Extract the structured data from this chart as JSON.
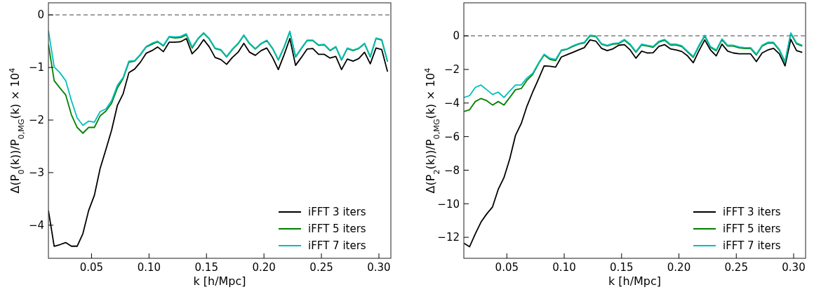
{
  "chart_data": [
    {
      "type": "line",
      "xlabel": "k [h/Mpc]",
      "ylabel": "Δ(P$_{0}$(k))/P$_{0,MG}$(k) × 10$^{4}$",
      "x": [
        0.0125,
        0.0175,
        0.0225,
        0.0275,
        0.0325,
        0.0375,
        0.0425,
        0.0475,
        0.0525,
        0.0575,
        0.0625,
        0.0675,
        0.0725,
        0.0775,
        0.0825,
        0.0875,
        0.0925,
        0.0975,
        0.1025,
        0.1075,
        0.1125,
        0.1175,
        0.1225,
        0.1275,
        0.1325,
        0.1375,
        0.1425,
        0.1475,
        0.1525,
        0.1575,
        0.1625,
        0.1675,
        0.1725,
        0.1775,
        0.1825,
        0.1875,
        0.1925,
        0.1975,
        0.2025,
        0.2075,
        0.2125,
        0.2175,
        0.2225,
        0.2275,
        0.2325,
        0.2375,
        0.2425,
        0.2475,
        0.2525,
        0.2575,
        0.2625,
        0.2675,
        0.2725,
        0.2775,
        0.2825,
        0.2875,
        0.2925,
        0.2975,
        0.3025,
        0.3075
      ],
      "series": [
        {
          "name": "iFFT 3 iters",
          "color": "#000000",
          "values": [
            -3.72,
            -4.4,
            -4.37,
            -4.33,
            -4.4,
            -4.4,
            -4.16,
            -3.72,
            -3.43,
            -2.92,
            -2.56,
            -2.19,
            -1.72,
            -1.5,
            -1.1,
            -1.03,
            -0.9,
            -0.73,
            -0.68,
            -0.61,
            -0.7,
            -0.52,
            -0.52,
            -0.51,
            -0.45,
            -0.74,
            -0.63,
            -0.47,
            -0.61,
            -0.81,
            -0.85,
            -0.94,
            -0.81,
            -0.71,
            -0.54,
            -0.71,
            -0.77,
            -0.68,
            -0.63,
            -0.81,
            -1.04,
            -0.76,
            -0.45,
            -0.96,
            -0.81,
            -0.65,
            -0.64,
            -0.75,
            -0.75,
            -0.82,
            -0.79,
            -1.04,
            -0.84,
            -0.88,
            -0.83,
            -0.71,
            -0.93,
            -0.63,
            -0.66,
            -1.08
          ]
        },
        {
          "name": "iFFT 5 iters",
          "color": "#008000",
          "values": [
            -0.56,
            -1.25,
            -1.39,
            -1.52,
            -1.9,
            -2.14,
            -2.25,
            -2.14,
            -2.14,
            -1.92,
            -1.83,
            -1.68,
            -1.39,
            -1.21,
            -0.9,
            -0.88,
            -0.76,
            -0.61,
            -0.56,
            -0.51,
            -0.59,
            -0.42,
            -0.44,
            -0.43,
            -0.38,
            -0.63,
            -0.46,
            -0.35,
            -0.46,
            -0.64,
            -0.67,
            -0.8,
            -0.66,
            -0.55,
            -0.39,
            -0.55,
            -0.65,
            -0.55,
            -0.49,
            -0.64,
            -0.86,
            -0.62,
            -0.32,
            -0.8,
            -0.64,
            -0.49,
            -0.49,
            -0.58,
            -0.57,
            -0.68,
            -0.61,
            -0.86,
            -0.64,
            -0.68,
            -0.64,
            -0.55,
            -0.8,
            -0.45,
            -0.48,
            -0.89
          ]
        },
        {
          "name": "iFFT 7 iters",
          "color": "#00bfbf",
          "values": [
            -0.3,
            -0.99,
            -1.1,
            -1.25,
            -1.63,
            -1.96,
            -2.1,
            -2.02,
            -2.04,
            -1.84,
            -1.79,
            -1.63,
            -1.34,
            -1.19,
            -0.88,
            -0.87,
            -0.75,
            -0.6,
            -0.54,
            -0.5,
            -0.58,
            -0.41,
            -0.42,
            -0.41,
            -0.36,
            -0.61,
            -0.45,
            -0.34,
            -0.45,
            -0.63,
            -0.66,
            -0.79,
            -0.65,
            -0.54,
            -0.38,
            -0.54,
            -0.64,
            -0.54,
            -0.48,
            -0.63,
            -0.85,
            -0.61,
            -0.31,
            -0.79,
            -0.63,
            -0.48,
            -0.48,
            -0.57,
            -0.56,
            -0.67,
            -0.6,
            -0.85,
            -0.63,
            -0.67,
            -0.63,
            -0.54,
            -0.79,
            -0.44,
            -0.47,
            -0.88
          ]
        }
      ],
      "xlim": [
        0.0125,
        0.3104
      ],
      "xticks": [
        0.05,
        {
          "value": 0.1,
          "label": "0.10"
        },
        0.15,
        {
          "value": 0.2,
          "label": "0.20"
        },
        0.25,
        {
          "value": 0.3,
          "label": "0.30"
        }
      ],
      "ylim": [
        -4.63,
        0.23
      ],
      "yticks": [
        {
          "value": -4,
          "label": "−4"
        },
        {
          "value": -3,
          "label": "−3"
        },
        {
          "value": -2,
          "label": "−2"
        },
        {
          "value": -1,
          "label": "−1"
        },
        0
      ],
      "ref_lines": [
        {
          "axis": "y",
          "value": 0,
          "color": "#808080",
          "line_style": "dashed"
        }
      ],
      "legend": "bottom right",
      "grid": false,
      "line_style": "solid",
      "marker": "none"
    },
    {
      "type": "line",
      "xlabel": "k [h/Mpc]",
      "ylabel": "Δ(P$_{2}$(k))/P$_{0,MG}$(k) × 10$^{4}$",
      "x": [
        0.0125,
        0.0175,
        0.0225,
        0.0275,
        0.0325,
        0.0375,
        0.0425,
        0.0475,
        0.0525,
        0.0575,
        0.0625,
        0.0675,
        0.0725,
        0.0775,
        0.0825,
        0.0875,
        0.0925,
        0.0975,
        0.1025,
        0.1075,
        0.1125,
        0.1175,
        0.1225,
        0.1275,
        0.1325,
        0.1375,
        0.1425,
        0.1475,
        0.1525,
        0.1575,
        0.1625,
        0.1675,
        0.1725,
        0.1775,
        0.1825,
        0.1875,
        0.1925,
        0.1975,
        0.2025,
        0.2075,
        0.2125,
        0.2175,
        0.2225,
        0.2275,
        0.2325,
        0.2375,
        0.2425,
        0.2475,
        0.2525,
        0.2575,
        0.2625,
        0.2675,
        0.2725,
        0.2775,
        0.2825,
        0.2875,
        0.2925,
        0.2975,
        0.3025,
        0.3075
      ],
      "series": [
        {
          "name": "iFFT 3 iters",
          "color": "#000000",
          "values": [
            -12.35,
            -12.56,
            -11.79,
            -11.09,
            -10.6,
            -10.19,
            -9.14,
            -8.44,
            -7.33,
            -5.93,
            -5.23,
            -4.19,
            -3.35,
            -2.58,
            -1.79,
            -1.81,
            -1.86,
            -1.26,
            -1.12,
            -0.98,
            -0.84,
            -0.7,
            -0.24,
            -0.31,
            -0.74,
            -0.88,
            -0.77,
            -0.56,
            -0.52,
            -0.84,
            -1.33,
            -0.91,
            -1.02,
            -1.0,
            -0.63,
            -0.52,
            -0.77,
            -0.84,
            -0.93,
            -1.19,
            -1.6,
            -0.88,
            -0.24,
            -0.84,
            -1.19,
            -0.49,
            -0.91,
            -1.02,
            -1.07,
            -1.07,
            -1.07,
            -1.53,
            -1.02,
            -0.84,
            -0.74,
            -1.07,
            -1.79,
            -0.21,
            -0.88,
            -0.98
          ]
        },
        {
          "name": "iFFT 5 iters",
          "color": "#008000",
          "values": [
            -4.51,
            -4.4,
            -3.91,
            -3.73,
            -3.86,
            -4.12,
            -3.91,
            -4.12,
            -3.67,
            -3.21,
            -3.14,
            -2.65,
            -2.3,
            -1.67,
            -1.14,
            -1.4,
            -1.47,
            -0.88,
            -0.8,
            -0.63,
            -0.49,
            -0.42,
            0,
            -0.04,
            -0.49,
            -0.6,
            -0.49,
            -0.47,
            -0.26,
            -0.54,
            -0.98,
            -0.54,
            -0.61,
            -0.68,
            -0.37,
            -0.26,
            -0.54,
            -0.54,
            -0.64,
            -0.96,
            -1.28,
            -0.61,
            -0.01,
            -0.68,
            -0.89,
            -0.23,
            -0.61,
            -0.61,
            -0.71,
            -0.75,
            -0.75,
            -1.14,
            -0.61,
            -0.43,
            -0.43,
            -0.85,
            -1.58,
            0.13,
            -0.47,
            -0.61
          ]
        },
        {
          "name": "iFFT 7 iters",
          "color": "#00bfbf",
          "values": [
            -3.67,
            -3.56,
            -3.07,
            -2.93,
            -3.21,
            -3.49,
            -3.35,
            -3.67,
            -3.28,
            -2.93,
            -2.93,
            -2.51,
            -2.23,
            -1.63,
            -1.09,
            -1.33,
            -1.4,
            -0.84,
            -0.77,
            -0.59,
            -0.46,
            -0.38,
            0.04,
            0,
            -0.46,
            -0.56,
            -0.45,
            -0.42,
            -0.21,
            -0.49,
            -0.93,
            -0.49,
            -0.56,
            -0.63,
            -0.32,
            -0.21,
            -0.49,
            -0.49,
            -0.59,
            -0.91,
            -1.23,
            -0.56,
            0.04,
            -0.63,
            -0.84,
            -0.18,
            -0.56,
            -0.56,
            -0.66,
            -0.7,
            -0.7,
            -1.09,
            -0.56,
            -0.38,
            -0.38,
            -0.8,
            -1.53,
            0.18,
            -0.42,
            -0.56
          ]
        }
      ],
      "xlim": [
        0.0125,
        0.3104
      ],
      "xticks": [
        0.05,
        {
          "value": 0.1,
          "label": "0.10"
        },
        0.15,
        {
          "value": 0.2,
          "label": "0.20"
        },
        0.25,
        {
          "value": 0.3,
          "label": "0.30"
        }
      ],
      "ylim": [
        -13.25,
        1.97
      ],
      "yticks": [
        {
          "value": -12,
          "label": "−12"
        },
        {
          "value": -10,
          "label": "−10"
        },
        {
          "value": -8,
          "label": "−8"
        },
        {
          "value": -6,
          "label": "−6"
        },
        {
          "value": -4,
          "label": "−4"
        },
        {
          "value": -2,
          "label": "−2"
        },
        0
      ],
      "ref_lines": [
        {
          "axis": "y",
          "value": 0,
          "color": "#808080",
          "line_style": "dashed"
        }
      ],
      "legend": "bottom right",
      "grid": false,
      "line_style": "solid",
      "marker": "none"
    }
  ]
}
